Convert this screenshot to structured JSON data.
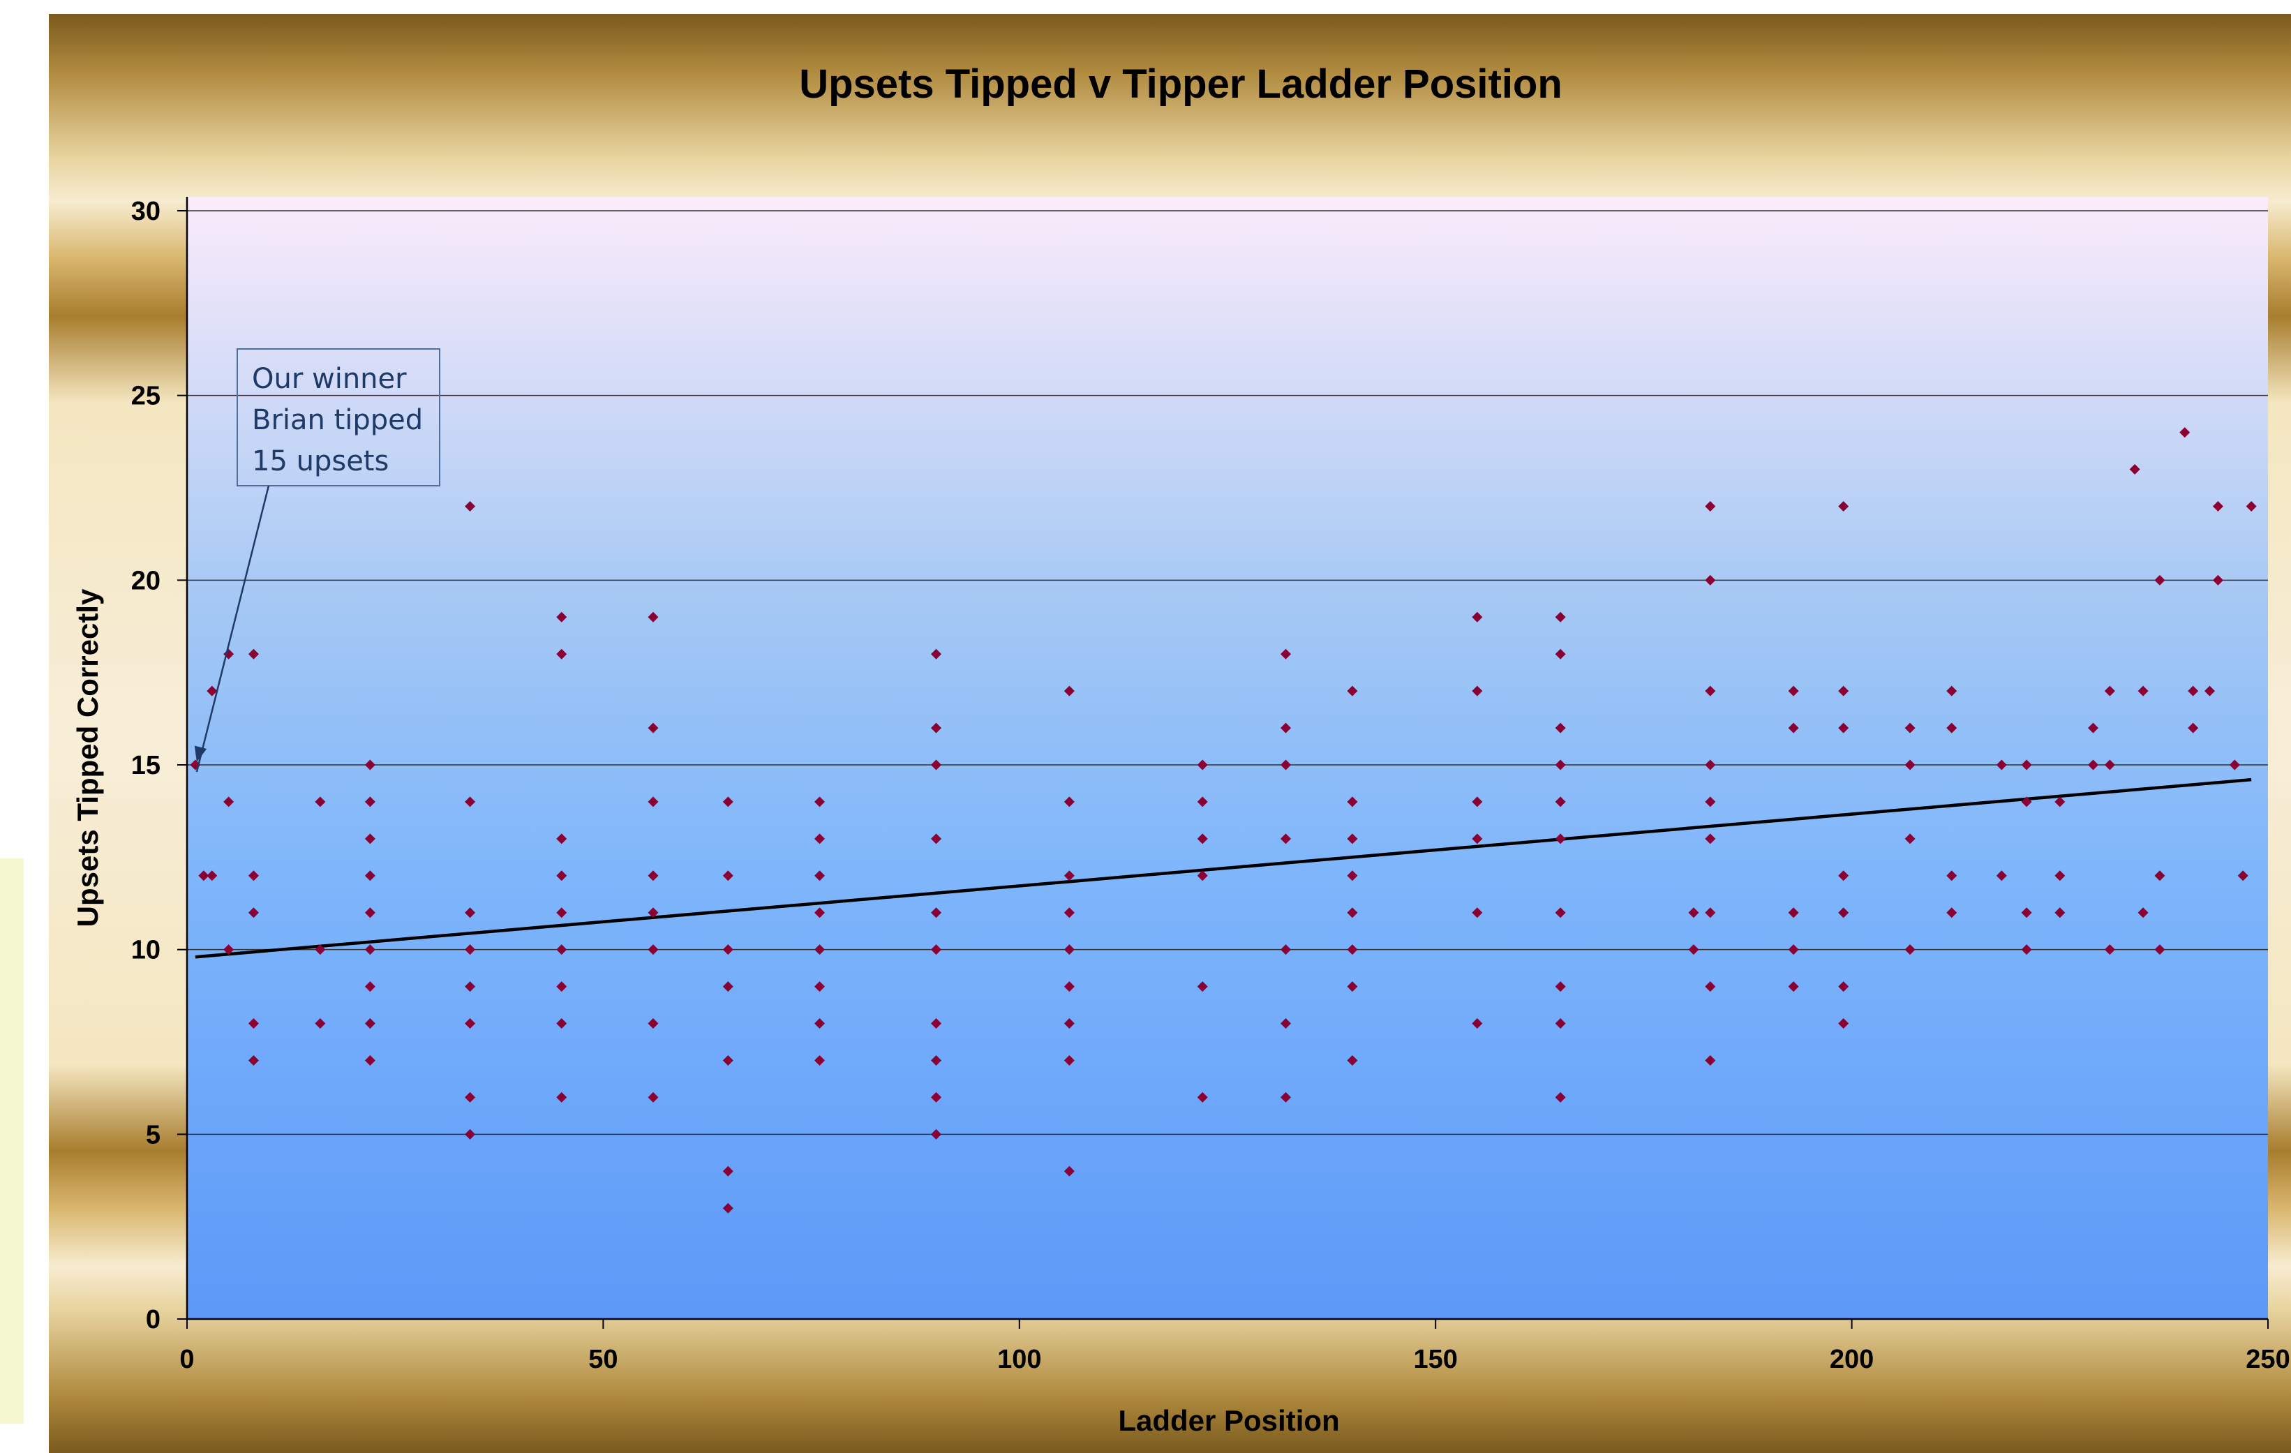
{
  "chart_data": {
    "type": "scatter",
    "title": "Upsets Tipped v Tipper Ladder Position",
    "xlabel": "Ladder Position",
    "ylabel": "Upsets Tipped Correctly",
    "xlim": [
      0,
      250
    ],
    "ylim": [
      0,
      30
    ],
    "x_ticks": [
      0,
      50,
      100,
      150,
      200,
      250
    ],
    "y_ticks": [
      0,
      5,
      10,
      15,
      20,
      25,
      30
    ],
    "grid": "horizontal",
    "legend": "none",
    "marker_color": "#8b0033",
    "trendline": {
      "x": [
        1,
        248
      ],
      "y": [
        9.8,
        14.6
      ]
    },
    "annotation": {
      "lines": [
        "Our winner",
        "Brian tipped",
        "15 upsets"
      ],
      "target": [
        1,
        15
      ]
    },
    "points": [
      [
        1,
        15
      ],
      [
        2,
        12
      ],
      [
        3,
        12
      ],
      [
        3,
        17
      ],
      [
        5,
        10
      ],
      [
        5,
        14
      ],
      [
        5,
        18
      ],
      [
        8,
        7
      ],
      [
        8,
        8
      ],
      [
        8,
        11
      ],
      [
        8,
        12
      ],
      [
        8,
        18
      ],
      [
        16,
        8
      ],
      [
        16,
        10
      ],
      [
        16,
        14
      ],
      [
        22,
        7
      ],
      [
        22,
        8
      ],
      [
        22,
        9
      ],
      [
        22,
        10
      ],
      [
        22,
        11
      ],
      [
        22,
        12
      ],
      [
        22,
        13
      ],
      [
        22,
        14
      ],
      [
        22,
        15
      ],
      [
        34,
        5
      ],
      [
        34,
        6
      ],
      [
        34,
        8
      ],
      [
        34,
        9
      ],
      [
        34,
        10
      ],
      [
        34,
        11
      ],
      [
        34,
        14
      ],
      [
        34,
        22
      ],
      [
        45,
        6
      ],
      [
        45,
        8
      ],
      [
        45,
        9
      ],
      [
        45,
        10
      ],
      [
        45,
        11
      ],
      [
        45,
        12
      ],
      [
        45,
        13
      ],
      [
        45,
        18
      ],
      [
        45,
        19
      ],
      [
        56,
        6
      ],
      [
        56,
        8
      ],
      [
        56,
        10
      ],
      [
        56,
        11
      ],
      [
        56,
        12
      ],
      [
        56,
        14
      ],
      [
        56,
        16
      ],
      [
        56,
        19
      ],
      [
        65,
        3
      ],
      [
        65,
        4
      ],
      [
        65,
        7
      ],
      [
        65,
        9
      ],
      [
        65,
        10
      ],
      [
        65,
        12
      ],
      [
        65,
        14
      ],
      [
        76,
        7
      ],
      [
        76,
        8
      ],
      [
        76,
        9
      ],
      [
        76,
        10
      ],
      [
        76,
        11
      ],
      [
        76,
        12
      ],
      [
        76,
        13
      ],
      [
        76,
        14
      ],
      [
        90,
        5
      ],
      [
        90,
        6
      ],
      [
        90,
        7
      ],
      [
        90,
        8
      ],
      [
        90,
        10
      ],
      [
        90,
        11
      ],
      [
        90,
        13
      ],
      [
        90,
        15
      ],
      [
        90,
        16
      ],
      [
        90,
        18
      ],
      [
        106,
        4
      ],
      [
        106,
        7
      ],
      [
        106,
        8
      ],
      [
        106,
        9
      ],
      [
        106,
        10
      ],
      [
        106,
        11
      ],
      [
        106,
        12
      ],
      [
        106,
        14
      ],
      [
        106,
        17
      ],
      [
        122,
        6
      ],
      [
        122,
        9
      ],
      [
        122,
        12
      ],
      [
        122,
        13
      ],
      [
        122,
        14
      ],
      [
        122,
        15
      ],
      [
        132,
        6
      ],
      [
        132,
        8
      ],
      [
        132,
        10
      ],
      [
        132,
        13
      ],
      [
        132,
        15
      ],
      [
        132,
        16
      ],
      [
        132,
        18
      ],
      [
        140,
        7
      ],
      [
        140,
        9
      ],
      [
        140,
        10
      ],
      [
        140,
        11
      ],
      [
        140,
        12
      ],
      [
        140,
        13
      ],
      [
        140,
        14
      ],
      [
        140,
        17
      ],
      [
        155,
        8
      ],
      [
        155,
        11
      ],
      [
        155,
        13
      ],
      [
        155,
        14
      ],
      [
        155,
        17
      ],
      [
        155,
        19
      ],
      [
        165,
        6
      ],
      [
        165,
        8
      ],
      [
        165,
        9
      ],
      [
        165,
        11
      ],
      [
        165,
        13
      ],
      [
        165,
        14
      ],
      [
        165,
        15
      ],
      [
        165,
        16
      ],
      [
        165,
        18
      ],
      [
        165,
        19
      ],
      [
        181,
        10
      ],
      [
        181,
        11
      ],
      [
        183,
        7
      ],
      [
        183,
        9
      ],
      [
        183,
        11
      ],
      [
        183,
        13
      ],
      [
        183,
        14
      ],
      [
        183,
        15
      ],
      [
        183,
        17
      ],
      [
        183,
        20
      ],
      [
        183,
        22
      ],
      [
        193,
        9
      ],
      [
        193,
        10
      ],
      [
        193,
        11
      ],
      [
        193,
        16
      ],
      [
        193,
        17
      ],
      [
        199,
        8
      ],
      [
        199,
        9
      ],
      [
        199,
        11
      ],
      [
        199,
        12
      ],
      [
        199,
        16
      ],
      [
        199,
        17
      ],
      [
        199,
        22
      ],
      [
        207,
        10
      ],
      [
        207,
        13
      ],
      [
        207,
        15
      ],
      [
        207,
        16
      ],
      [
        212,
        11
      ],
      [
        212,
        12
      ],
      [
        212,
        16
      ],
      [
        212,
        17
      ],
      [
        218,
        12
      ],
      [
        218,
        15
      ],
      [
        221,
        10
      ],
      [
        221,
        11
      ],
      [
        221,
        14
      ],
      [
        221,
        15
      ],
      [
        225,
        11
      ],
      [
        225,
        12
      ],
      [
        225,
        14
      ],
      [
        229,
        15
      ],
      [
        229,
        16
      ],
      [
        231,
        10
      ],
      [
        231,
        15
      ],
      [
        231,
        17
      ],
      [
        234,
        23
      ],
      [
        235,
        11
      ],
      [
        235,
        17
      ],
      [
        237,
        10
      ],
      [
        237,
        12
      ],
      [
        237,
        20
      ],
      [
        240,
        24
      ],
      [
        241,
        16
      ],
      [
        241,
        17
      ],
      [
        243,
        17
      ],
      [
        244,
        20
      ],
      [
        244,
        22
      ],
      [
        246,
        15
      ],
      [
        247,
        12
      ],
      [
        248,
        22
      ]
    ]
  }
}
